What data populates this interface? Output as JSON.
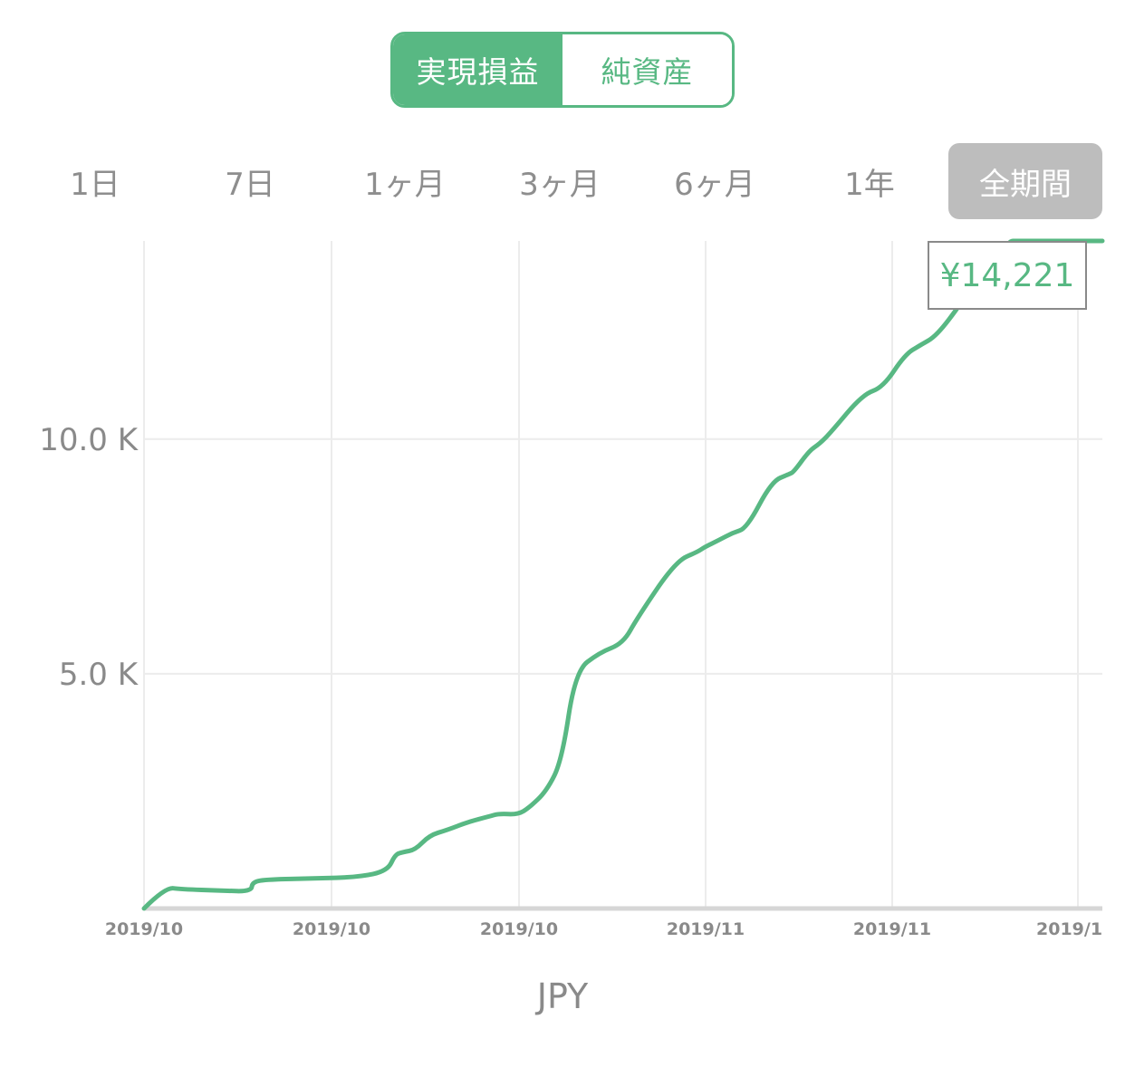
{
  "toggle": {
    "realized_pnl": "実現損益",
    "net_assets": "純資産"
  },
  "periods": [
    "1日",
    "7日",
    "1ヶ月",
    "3ヶ月",
    "6ヶ月",
    "1年",
    "全期間"
  ],
  "active_period": "全期間",
  "current_value": "¥14,221",
  "currency_label": "JPY",
  "colors": {
    "accent": "#58b883",
    "muted_text": "#8a8a8a",
    "active_period_bg": "#bdbdbd",
    "grid": "#ececec"
  },
  "chart_data": {
    "type": "line",
    "title": "",
    "xlabel": "JPY",
    "ylabel": "",
    "x_ticks": [
      "2019/10",
      "2019/10",
      "2019/10",
      "2019/11",
      "2019/11",
      "2019/1"
    ],
    "y_ticks": [
      {
        "value": 5000,
        "label": "5.0 K"
      },
      {
        "value": 10000,
        "label": "10.0 K"
      }
    ],
    "xlim": [
      0,
      1
    ],
    "ylim": [
      0,
      14221
    ],
    "grid": true,
    "legend": "none",
    "series": [
      {
        "color": "#58b883",
        "x": [
          0.0,
          0.022,
          0.039,
          0.081,
          0.112,
          0.113,
          0.13,
          0.177,
          0.224,
          0.254,
          0.262,
          0.27,
          0.283,
          0.298,
          0.316,
          0.339,
          0.36,
          0.37,
          0.39,
          0.402,
          0.42,
          0.436,
          0.45,
          0.475,
          0.5,
          0.515,
          0.555,
          0.578,
          0.585,
          0.6,
          0.614,
          0.629,
          0.655,
          0.673,
          0.678,
          0.694,
          0.705,
          0.717,
          0.75,
          0.771,
          0.794,
          0.81,
          0.827,
          0.853,
          0.859,
          0.878,
          0.886,
          0.901,
          0.912,
          0.927,
          0.94,
          0.955,
          0.972,
          0.99,
          1.0
        ],
        "y": [
          0,
          450,
          410,
          380,
          360,
          570,
          620,
          640,
          670,
          800,
          1150,
          1200,
          1250,
          1560,
          1670,
          1850,
          1960,
          2020,
          2000,
          2150,
          2500,
          3150,
          5050,
          5450,
          5650,
          6200,
          7400,
          7600,
          7700,
          7850,
          8000,
          8100,
          9100,
          9250,
          9300,
          9750,
          9900,
          10150,
          10950,
          11100,
          11800,
          12000,
          12200,
          12900,
          13150,
          13400,
          13500,
          14221,
          14221,
          14221,
          14221,
          14221,
          14221,
          14221,
          14221
        ]
      }
    ]
  }
}
